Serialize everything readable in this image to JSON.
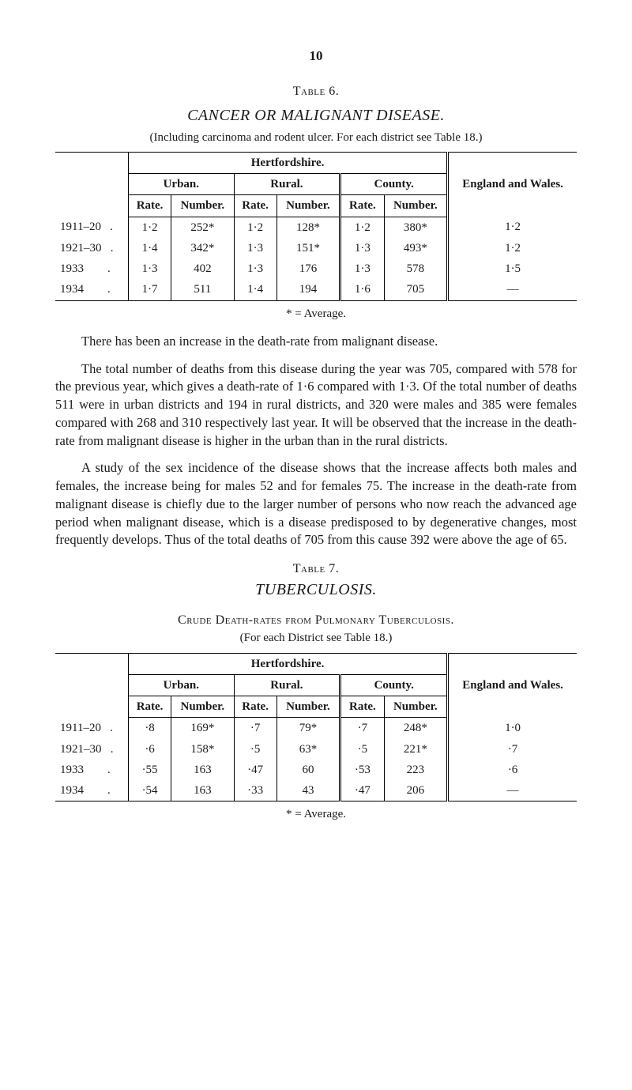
{
  "page_number": "10",
  "table6": {
    "label": "Table 6.",
    "title": "CANCER OR MALIGNANT DISEASE.",
    "subtitle": "(Including carcinoma and rodent ulcer. For each district see Table 18.)",
    "header_region": "Hertfordshire.",
    "header_england": "England and Wales.",
    "subheaders": {
      "urban": "Urban.",
      "rural": "Rural.",
      "county": "County."
    },
    "colheads": {
      "rate": "Rate.",
      "number": "Number."
    },
    "rows": [
      {
        "period": "1911–20   .",
        "ur": "1·2",
        "un": "252*",
        "rr": "1·2",
        "rn": "128*",
        "cr": "1·2",
        "cn": "380*",
        "ew": "1·2"
      },
      {
        "period": "1921–30   .",
        "ur": "1·4",
        "un": "342*",
        "rr": "1·3",
        "rn": "151*",
        "cr": "1·3",
        "cn": "493*",
        "ew": "1·2"
      },
      {
        "period": "1933        .",
        "ur": "1·3",
        "un": "402",
        "rr": "1·3",
        "rn": "176",
        "cr": "1·3",
        "cn": "578",
        "ew": "1·5"
      },
      {
        "period": "1934        .",
        "ur": "1·7",
        "un": "511",
        "rr": "1·4",
        "rn": "194",
        "cr": "1·6",
        "cn": "705",
        "ew": "—"
      }
    ],
    "footnote": "* = Average."
  },
  "para1": "There has been an increase in the death-rate from malignant disease.",
  "para2": "The total number of deaths from this disease during the year was 705, compared with 578 for the previous year, which gives a death-rate of 1·6 compared with 1·3. Of the total number of deaths 511 were in urban districts and 194 in rural districts, and 320 were males and 385 were females compared with 268 and 310 respectively last year. It will be observed that the increase in the death-rate from malignant disease is higher in the urban than in the rural districts.",
  "para3": "A study of the sex incidence of the disease shows that the increase affects both males and females, the increase being for males 52 and for females 75. The increase in the death-rate from malignant disease is chiefly due to the larger number of persons who now reach the advanced age period when malignant disease, which is a disease predisposed to by degenerative changes, most frequently develops. Thus of the total deaths of 705 from this cause 392 were above the age of 65.",
  "table7": {
    "label": "Table 7.",
    "title": "TUBERCULOSIS.",
    "subtitle_sc": "Crude Death-rates from Pulmonary Tuberculosis.",
    "subtitle2": "(For each District see Table 18.)",
    "rows": [
      {
        "period": "1911–20   .",
        "ur": "·8",
        "un": "169*",
        "rr": "·7",
        "rn": "79*",
        "cr": "·7",
        "cn": "248*",
        "ew": "1·0"
      },
      {
        "period": "1921–30   .",
        "ur": "·6",
        "un": "158*",
        "rr": "·5",
        "rn": "63*",
        "cr": "·5",
        "cn": "221*",
        "ew": "·7"
      },
      {
        "period": "1933        .",
        "ur": "·55",
        "un": "163",
        "rr": "·47",
        "rn": "60",
        "cr": "·53",
        "cn": "223",
        "ew": "·6"
      },
      {
        "period": "1934        .",
        "ur": "·54",
        "un": "163",
        "rr": "·33",
        "rn": "43",
        "cr": "·47",
        "cn": "206",
        "ew": "—"
      }
    ],
    "footnote": "* = Average."
  }
}
